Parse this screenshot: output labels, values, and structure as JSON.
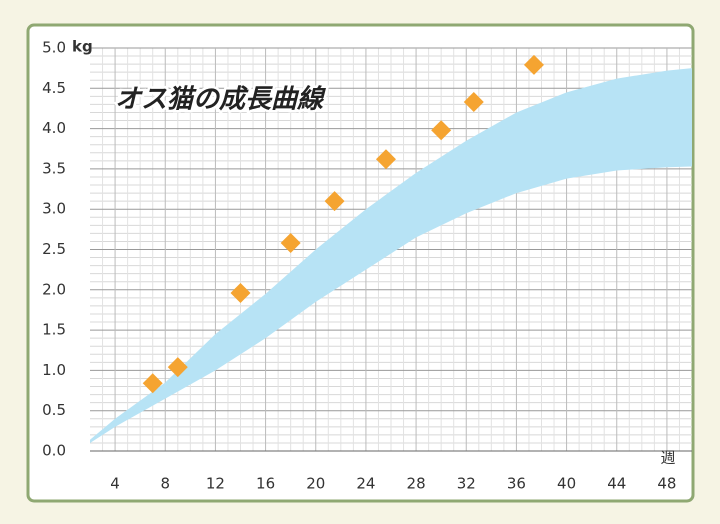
{
  "chart_data": {
    "type": "scatter",
    "title": "オス猫の成長曲線",
    "y_unit": "kg",
    "x_unit": "週",
    "xlim": [
      2,
      50
    ],
    "xticks": [
      4,
      8,
      12,
      16,
      20,
      24,
      28,
      32,
      36,
      40,
      44,
      48
    ],
    "ylim": [
      0,
      5
    ],
    "yticks": [
      {
        "value": 0,
        "label": "0.0"
      },
      {
        "value": 0.5,
        "label": "0.5"
      },
      {
        "value": 1,
        "label": "1.0"
      },
      {
        "value": 1.5,
        "label": "1.5"
      },
      {
        "value": 2,
        "label": "2.0"
      },
      {
        "value": 2.5,
        "label": "2.5"
      },
      {
        "value": 3,
        "label": "3.0"
      },
      {
        "value": 3.5,
        "label": "3.5"
      },
      {
        "value": 4,
        "label": "4.0"
      },
      {
        "value": 4.5,
        "label": "4.5"
      },
      {
        "value": 5,
        "label": "5.0"
      }
    ],
    "grid": true,
    "band": {
      "color": "#b7e3f5",
      "x": [
        2,
        4,
        8,
        12,
        16,
        20,
        24,
        28,
        32,
        36,
        40,
        44,
        48,
        50
      ],
      "upper": [
        0.14,
        0.4,
        0.85,
        1.45,
        1.95,
        2.5,
        3.0,
        3.45,
        3.85,
        4.2,
        4.45,
        4.62,
        4.72,
        4.75
      ],
      "lower": [
        0.1,
        0.3,
        0.65,
        1.0,
        1.4,
        1.85,
        2.25,
        2.65,
        2.95,
        3.2,
        3.38,
        3.48,
        3.52,
        3.53
      ]
    },
    "series": [
      {
        "color": "#f5a431",
        "x": [
          7,
          9,
          14,
          18,
          21.5,
          25.6,
          30,
          32.6,
          37.4
        ],
        "values": [
          0.84,
          1.04,
          1.96,
          2.58,
          3.1,
          3.62,
          3.98,
          4.33,
          4.79
        ]
      }
    ]
  }
}
